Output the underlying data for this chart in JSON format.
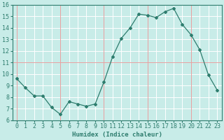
{
  "x": [
    0,
    1,
    2,
    3,
    4,
    5,
    6,
    7,
    8,
    9,
    10,
    11,
    12,
    13,
    14,
    15,
    16,
    17,
    18,
    19,
    20,
    21,
    22,
    23
  ],
  "y": [
    9.6,
    8.8,
    8.1,
    8.1,
    7.1,
    6.5,
    7.6,
    7.4,
    7.2,
    7.4,
    9.3,
    11.5,
    13.1,
    14.0,
    15.2,
    15.1,
    14.9,
    15.4,
    15.7,
    14.3,
    13.4,
    12.1,
    9.9,
    8.6
  ],
  "line_color": "#2e7d6e",
  "marker": "D",
  "marker_size": 2,
  "bg_color": "#c8ece8",
  "grid_white_color": "#ffffff",
  "grid_pink_color": "#e8a0a0",
  "xlabel": "Humidex (Indice chaleur)",
  "ylim": [
    6,
    16
  ],
  "xlim": [
    -0.5,
    23.5
  ],
  "yticks": [
    6,
    7,
    8,
    9,
    10,
    11,
    12,
    13,
    14,
    15,
    16
  ],
  "xticks": [
    0,
    1,
    2,
    3,
    4,
    5,
    6,
    7,
    8,
    9,
    10,
    11,
    12,
    13,
    14,
    15,
    16,
    17,
    18,
    19,
    20,
    21,
    22,
    23
  ],
  "label_fontsize": 6.5,
  "tick_fontsize": 6
}
